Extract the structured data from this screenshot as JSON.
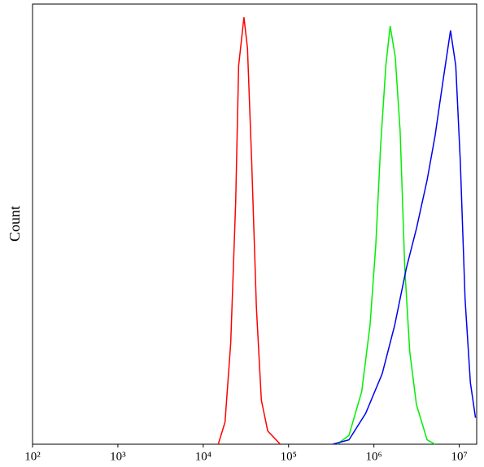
{
  "chart_data": {
    "type": "line",
    "ylabel": "Count",
    "xscale": "log",
    "xlim": [
      100,
      16000000
    ],
    "ylim": [
      0,
      100
    ],
    "xticks": [
      {
        "value": 100,
        "label": "10²"
      },
      {
        "value": 1000,
        "label": "10³"
      },
      {
        "value": 10000,
        "label": "10⁴"
      },
      {
        "value": 100000,
        "label": "10⁵"
      },
      {
        "value": 1000000,
        "label": "10⁶"
      },
      {
        "value": 10000000,
        "label": "10⁷"
      }
    ],
    "series": [
      {
        "color": "#ff0000",
        "x": [
          15000,
          18000,
          21000,
          24000,
          26000,
          30000,
          33000,
          37000,
          42000,
          48000,
          57000,
          80000
        ],
        "values": [
          0,
          5,
          23,
          55,
          86,
          97,
          90,
          64,
          31,
          10,
          3,
          0
        ]
      },
      {
        "color": "#00ee00",
        "x": [
          370000,
          510000,
          720000,
          900000,
          1050000,
          1200000,
          1380000,
          1550000,
          1780000,
          2030000,
          2300000,
          2630000,
          3150000,
          4200000,
          5200000
        ],
        "values": [
          0,
          2,
          12,
          27,
          45,
          68,
          86,
          95,
          88,
          71,
          40,
          21,
          9,
          1,
          0
        ]
      },
      {
        "color": "#0000ee",
        "x": [
          330000,
          510000,
          800000,
          1250000,
          1750000,
          2400000,
          3150000,
          4200000,
          5200000,
          6500000,
          7900000,
          9100000,
          10300000,
          11700000,
          13500000,
          15500000
        ],
        "values": [
          0,
          1,
          7,
          16,
          27,
          40,
          49,
          60,
          70,
          83,
          94,
          86,
          64,
          33,
          14,
          6
        ]
      }
    ]
  }
}
